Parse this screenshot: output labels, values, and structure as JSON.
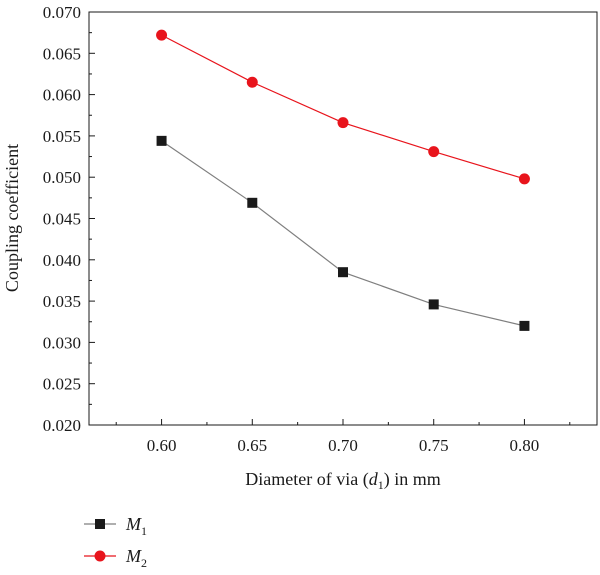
{
  "chart_data": {
    "type": "line",
    "title": "",
    "xlabel": {
      "prefix": "Diameter of via (",
      "var": "d",
      "sub": "1",
      "suffix": ") in mm"
    },
    "ylabel": "Coupling coefficient",
    "x": [
      0.6,
      0.65,
      0.7,
      0.75,
      0.8
    ],
    "x_ticks": [
      "0.60",
      "0.65",
      "0.70",
      "0.75",
      "0.80"
    ],
    "xlim": [
      0.56,
      0.84
    ],
    "ylim": [
      0.02,
      0.07
    ],
    "y_ticks": [
      "0.020",
      "0.025",
      "0.030",
      "0.035",
      "0.040",
      "0.045",
      "0.050",
      "0.055",
      "0.060",
      "0.065",
      "0.070"
    ],
    "grid": false,
    "legend_position": "bottom-left",
    "series": [
      {
        "name": "M",
        "name_sub": "1",
        "marker": "square",
        "line_color": "#7f7f7f",
        "marker_color": "#1a1a1a",
        "values": [
          0.0544,
          0.0469,
          0.0385,
          0.0346,
          0.032
        ]
      },
      {
        "name": "M",
        "name_sub": "2",
        "marker": "circle",
        "line_color": "#e8141c",
        "marker_color": "#e8141c",
        "values": [
          0.0672,
          0.0615,
          0.0566,
          0.0531,
          0.0498
        ]
      }
    ]
  }
}
